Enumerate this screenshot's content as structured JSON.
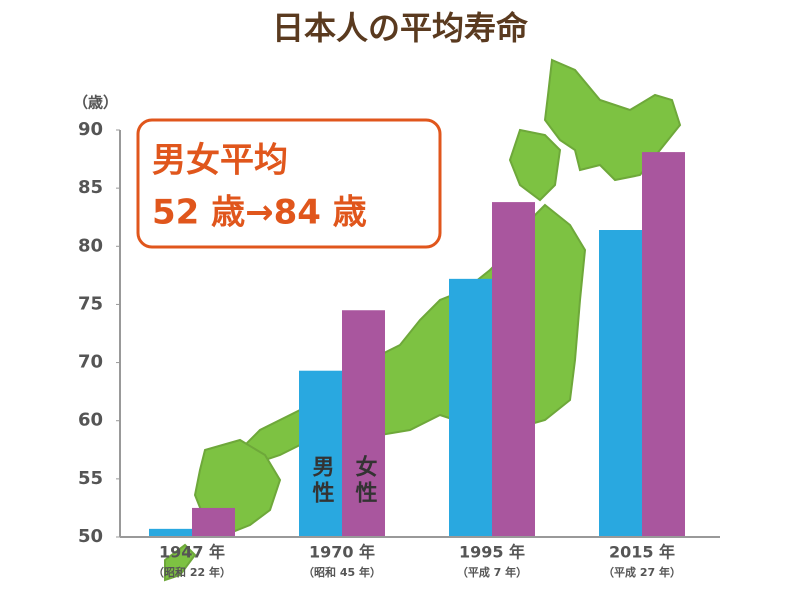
{
  "chart_data": {
    "type": "bar",
    "title": "日本人の平均寿命",
    "y_label": "（歳）",
    "annotations": [
      "男女平均",
      "52 歳→84 歳"
    ],
    "categories": [
      "1947 年",
      "1970 年",
      "1995 年",
      "2015 年"
    ],
    "category_sublabels": [
      "（昭和 22 年）",
      "（昭和 45 年）",
      "（平成 7 年）",
      "（平成 27 年）"
    ],
    "series": [
      {
        "name": "男性",
        "color": "#29a8e0",
        "values": [
          50.7,
          68.6,
          77.2,
          81.4
        ]
      },
      {
        "name": "女性",
        "color": "#a9569e",
        "values": [
          52.5,
          74.5,
          83.8,
          88.1
        ]
      }
    ],
    "ylim": [
      50,
      90
    ],
    "yticks": [
      50,
      55,
      60,
      70,
      75,
      80,
      85,
      90
    ],
    "grid": false,
    "legend": "inside"
  }
}
